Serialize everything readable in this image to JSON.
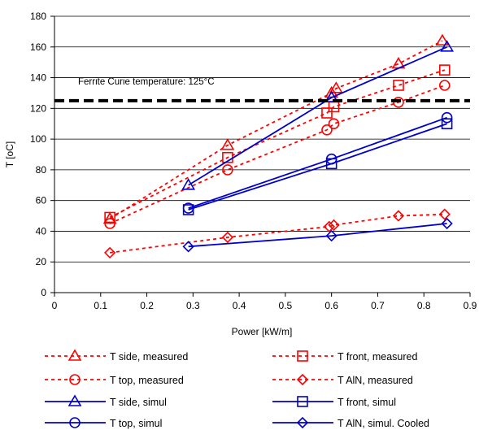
{
  "chart_data": {
    "type": "line",
    "xlabel": "Power [kW/m]",
    "ylabel": "T [oC]",
    "xlim": [
      0,
      0.9
    ],
    "ylim": [
      0,
      180
    ],
    "x_ticks": [
      0,
      0.1,
      0.2,
      0.3,
      0.4,
      0.5,
      0.6,
      0.7,
      0.8,
      0.9
    ],
    "x_tick_labels": [
      "0",
      "0.1",
      "0.2",
      "0.3",
      "0.4",
      "0.5",
      "0.6",
      "0.7",
      "0.8",
      "0.9"
    ],
    "y_ticks": [
      0,
      20,
      40,
      60,
      80,
      100,
      120,
      140,
      160,
      180
    ],
    "y_tick_labels": [
      "0",
      "20",
      "40",
      "60",
      "80",
      "100",
      "120",
      "140",
      "160",
      "180"
    ],
    "grid": "horizontal",
    "legend_position": "bottom",
    "reference_line": {
      "y": 125,
      "label": "Ferrite Curie temperature: 125°C",
      "color": "#000000",
      "style": "dashed"
    },
    "series": [
      {
        "name": "T side, measured",
        "color": "#ff0000",
        "line": "dotted",
        "marker": "triangle",
        "points": [
          [
            0.12,
            48
          ],
          [
            0.375,
            96
          ],
          [
            0.6,
            130
          ],
          [
            0.61,
            133
          ],
          [
            0.745,
            149
          ],
          [
            0.84,
            164
          ]
        ]
      },
      {
        "name": "T  front, measured",
        "color": "#ff0000",
        "line": "dotted",
        "marker": "square",
        "points": [
          [
            0.12,
            49
          ],
          [
            0.375,
            88
          ],
          [
            0.59,
            117
          ],
          [
            0.605,
            121
          ],
          [
            0.745,
            135
          ],
          [
            0.845,
            145
          ]
        ]
      },
      {
        "name": "T top, measured",
        "color": "#ff0000",
        "line": "dotted",
        "marker": "circle",
        "points": [
          [
            0.12,
            45
          ],
          [
            0.375,
            80
          ],
          [
            0.59,
            106
          ],
          [
            0.605,
            110
          ],
          [
            0.745,
            124
          ],
          [
            0.845,
            135
          ]
        ]
      },
      {
        "name": "T AlN, measured",
        "color": "#ff0000",
        "line": "dotted",
        "marker": "diamond",
        "points": [
          [
            0.12,
            26
          ],
          [
            0.375,
            36
          ],
          [
            0.595,
            43
          ],
          [
            0.605,
            44
          ],
          [
            0.745,
            50
          ],
          [
            0.845,
            51
          ]
        ]
      },
      {
        "name": "T side, simul",
        "color": "#0000cc",
        "line": "solid",
        "marker": "triangle",
        "points": [
          [
            0.29,
            70
          ],
          [
            0.6,
            127
          ],
          [
            0.85,
            160
          ]
        ]
      },
      {
        "name": "T front, simul",
        "color": "#0000cc",
        "line": "solid",
        "marker": "square",
        "points": [
          [
            0.29,
            54
          ],
          [
            0.6,
            84
          ],
          [
            0.85,
            110
          ]
        ]
      },
      {
        "name": "T top, simul",
        "color": "#0000cc",
        "line": "solid",
        "marker": "circle",
        "points": [
          [
            0.29,
            55
          ],
          [
            0.6,
            87
          ],
          [
            0.85,
            114
          ]
        ]
      },
      {
        "name": "T AlN, simul. Cooled",
        "color": "#0000cc",
        "line": "solid",
        "marker": "diamond",
        "points": [
          [
            0.29,
            30
          ],
          [
            0.6,
            37
          ],
          [
            0.85,
            45
          ]
        ]
      }
    ],
    "legend_order": [
      0,
      1,
      2,
      3,
      4,
      5,
      6,
      7
    ]
  }
}
